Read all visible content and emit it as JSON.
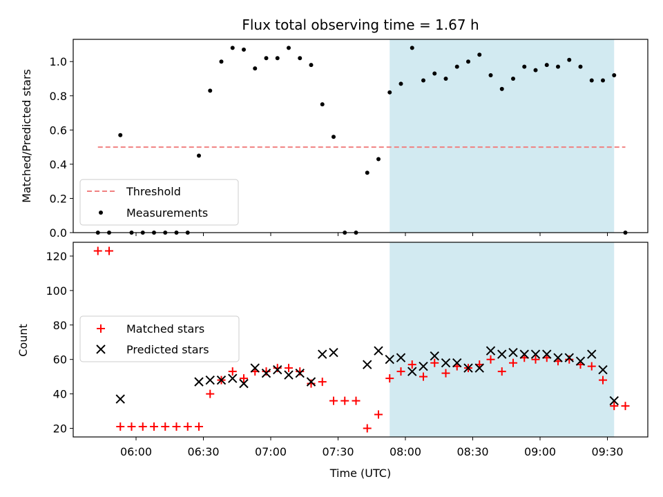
{
  "title": "Flux total observing time = 1.67 h",
  "colors": {
    "measurement": "#000000",
    "threshold": "#f08080",
    "matched": "#ff0000",
    "predicted": "#000000",
    "shade": "#add8e6"
  },
  "chart_data": [
    {
      "type": "scatter",
      "panel": "top",
      "ylabel": "Matched/Predicted stars",
      "ylim": [
        0,
        1.13
      ],
      "yticks": [
        "0.0",
        "0.2",
        "0.4",
        "0.6",
        "0.8",
        "1.0"
      ],
      "shaded_region": {
        "start": "07:53",
        "end": "09:33"
      },
      "threshold": {
        "name": "Threshold",
        "value": 0.5,
        "x_start": "05:43",
        "x_end": "09:38"
      },
      "legend": {
        "position": "lower-left",
        "entries": [
          "Threshold",
          "Measurements"
        ]
      },
      "series": [
        {
          "name": "Measurements",
          "marker": "dot",
          "x": [
            "05:43",
            "05:48",
            "05:53",
            "05:58",
            "06:03",
            "06:08",
            "06:13",
            "06:18",
            "06:23",
            "06:28",
            "06:33",
            "06:38",
            "06:43",
            "06:48",
            "06:53",
            "06:58",
            "07:03",
            "07:08",
            "07:13",
            "07:18",
            "07:23",
            "07:28",
            "07:33",
            "07:38",
            "07:43",
            "07:48",
            "07:53",
            "07:58",
            "08:03",
            "08:08",
            "08:13",
            "08:18",
            "08:23",
            "08:28",
            "08:33",
            "08:38",
            "08:43",
            "08:48",
            "08:53",
            "08:58",
            "09:03",
            "09:08",
            "09:13",
            "09:18",
            "09:23",
            "09:28",
            "09:33",
            "09:38"
          ],
          "y": [
            0.0,
            0.0,
            0.57,
            0.0,
            0.0,
            0.0,
            0.0,
            0.0,
            0.0,
            0.45,
            0.83,
            1.0,
            1.08,
            1.07,
            0.96,
            1.02,
            1.02,
            1.08,
            1.02,
            0.98,
            0.75,
            0.56,
            0.0,
            0.0,
            0.35,
            0.43,
            0.82,
            0.87,
            1.08,
            0.89,
            0.93,
            0.9,
            0.97,
            1.0,
            1.04,
            0.92,
            0.84,
            0.9,
            0.97,
            0.95,
            0.98,
            0.97,
            1.01,
            0.97,
            0.89,
            0.89,
            0.92,
            0.0
          ]
        }
      ]
    },
    {
      "type": "scatter",
      "panel": "bottom",
      "xlabel": "Time (UTC)",
      "ylabel": "Count",
      "ylim": [
        15,
        128
      ],
      "yticks": [
        "20",
        "40",
        "60",
        "80",
        "100",
        "120"
      ],
      "xlim": [
        "05:32",
        "09:48"
      ],
      "xticks": [
        "06:00",
        "06:30",
        "07:00",
        "07:30",
        "08:00",
        "08:30",
        "09:00",
        "09:30"
      ],
      "shaded_region": {
        "start": "07:53",
        "end": "09:33"
      },
      "legend": {
        "position": "center-left",
        "entries": [
          "Matched stars",
          "Predicted stars"
        ]
      },
      "series": [
        {
          "name": "Matched stars",
          "marker": "plus",
          "x": [
            "05:43",
            "05:48",
            "05:53",
            "05:58",
            "06:03",
            "06:08",
            "06:13",
            "06:18",
            "06:23",
            "06:28",
            "06:33",
            "06:38",
            "06:43",
            "06:48",
            "06:53",
            "06:58",
            "07:03",
            "07:08",
            "07:13",
            "07:18",
            "07:23",
            "07:28",
            "07:33",
            "07:38",
            "07:43",
            "07:48",
            "07:53",
            "07:58",
            "08:03",
            "08:08",
            "08:13",
            "08:18",
            "08:23",
            "08:28",
            "08:33",
            "08:38",
            "08:43",
            "08:48",
            "08:53",
            "08:58",
            "09:03",
            "09:08",
            "09:13",
            "09:18",
            "09:23",
            "09:28",
            "09:33",
            "09:38"
          ],
          "y": [
            123,
            123,
            21,
            21,
            21,
            21,
            21,
            21,
            21,
            21,
            40,
            48,
            53,
            49,
            53,
            53,
            55,
            55,
            53,
            46,
            47,
            36,
            36,
            36,
            20,
            28,
            49,
            53,
            57,
            50,
            58,
            52,
            56,
            55,
            57,
            60,
            53,
            58,
            61,
            60,
            61,
            59,
            60,
            57,
            56,
            48,
            33,
            33
          ]
        },
        {
          "name": "Predicted stars",
          "marker": "x",
          "x": [
            "05:53",
            "06:28",
            "06:33",
            "06:38",
            "06:43",
            "06:48",
            "06:53",
            "06:58",
            "07:03",
            "07:08",
            "07:13",
            "07:18",
            "07:23",
            "07:28",
            "07:43",
            "07:48",
            "07:53",
            "07:58",
            "08:03",
            "08:08",
            "08:13",
            "08:18",
            "08:23",
            "08:28",
            "08:33",
            "08:38",
            "08:43",
            "08:48",
            "08:53",
            "08:58",
            "09:03",
            "09:08",
            "09:13",
            "09:18",
            "09:23",
            "09:28",
            "09:33"
          ],
          "y": [
            37,
            47,
            48,
            48,
            49,
            46,
            55,
            52,
            54,
            51,
            52,
            47,
            63,
            64,
            57,
            65,
            60,
            61,
            53,
            56,
            62,
            58,
            58,
            55,
            55,
            65,
            63,
            64,
            63,
            63,
            63,
            61,
            61,
            59,
            63,
            54,
            36
          ]
        }
      ]
    }
  ]
}
